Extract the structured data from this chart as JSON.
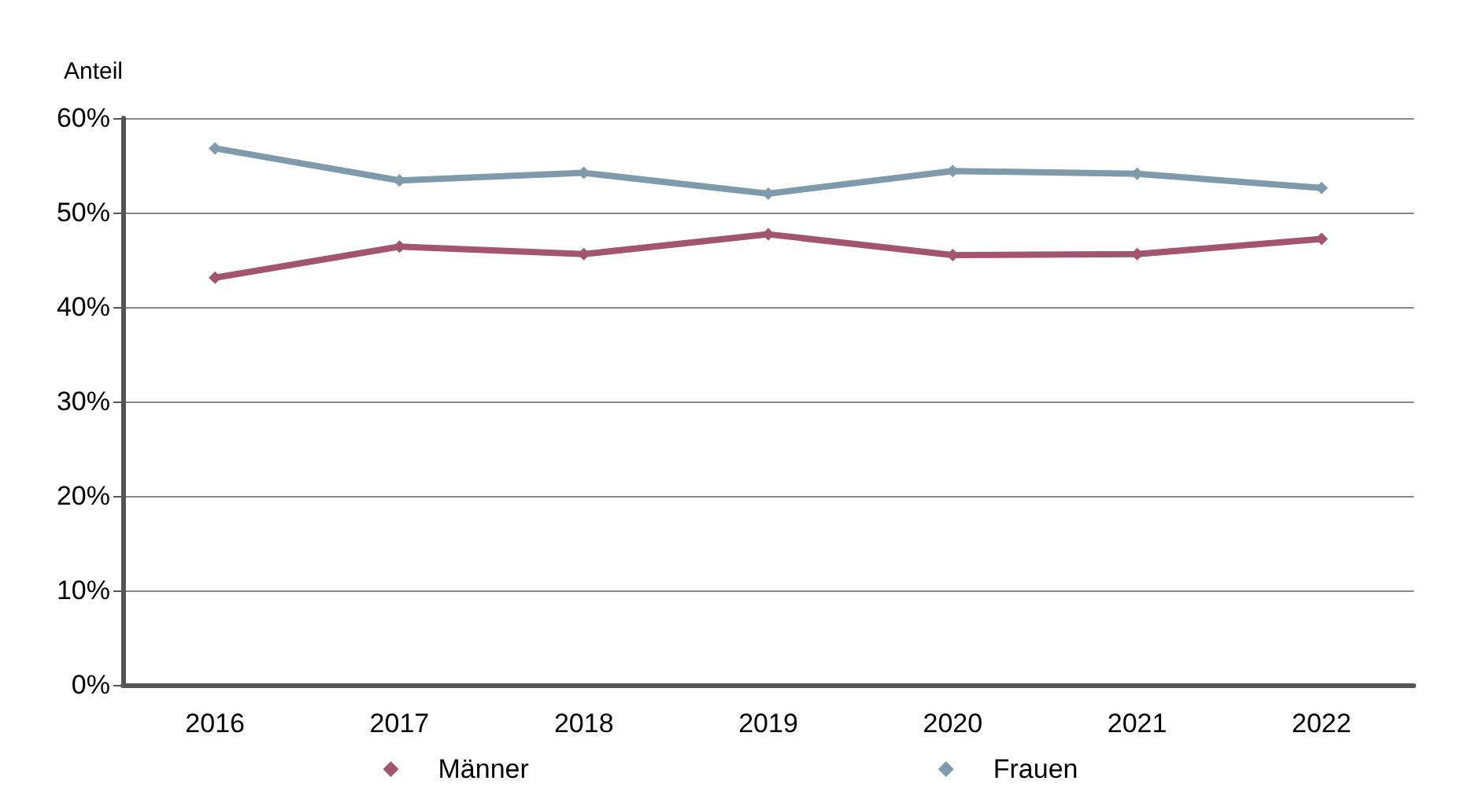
{
  "chart_data": {
    "type": "line",
    "ylabel": "Anteil",
    "categories": [
      "2016",
      "2017",
      "2018",
      "2019",
      "2020",
      "2021",
      "2022"
    ],
    "series": [
      {
        "name": "Männer",
        "color": "#a3546f",
        "values": [
          43.1,
          46.4,
          45.6,
          47.7,
          45.5,
          45.6,
          47.2
        ]
      },
      {
        "name": "Frauen",
        "color": "#7f9bab",
        "values": [
          56.8,
          53.4,
          54.2,
          52.0,
          54.4,
          54.1,
          52.6
        ]
      }
    ],
    "ylim": [
      0,
      60
    ],
    "yticks": [
      {
        "value": 0,
        "label": "0%"
      },
      {
        "value": 10,
        "label": "10%"
      },
      {
        "value": 20,
        "label": "20%"
      },
      {
        "value": 30,
        "label": "30%"
      },
      {
        "value": 40,
        "label": "40%"
      },
      {
        "value": 50,
        "label": "50%"
      },
      {
        "value": 60,
        "label": "60%"
      }
    ],
    "grid": "y",
    "legend": "bottom",
    "marker": "diamond",
    "line_style": "solid"
  }
}
